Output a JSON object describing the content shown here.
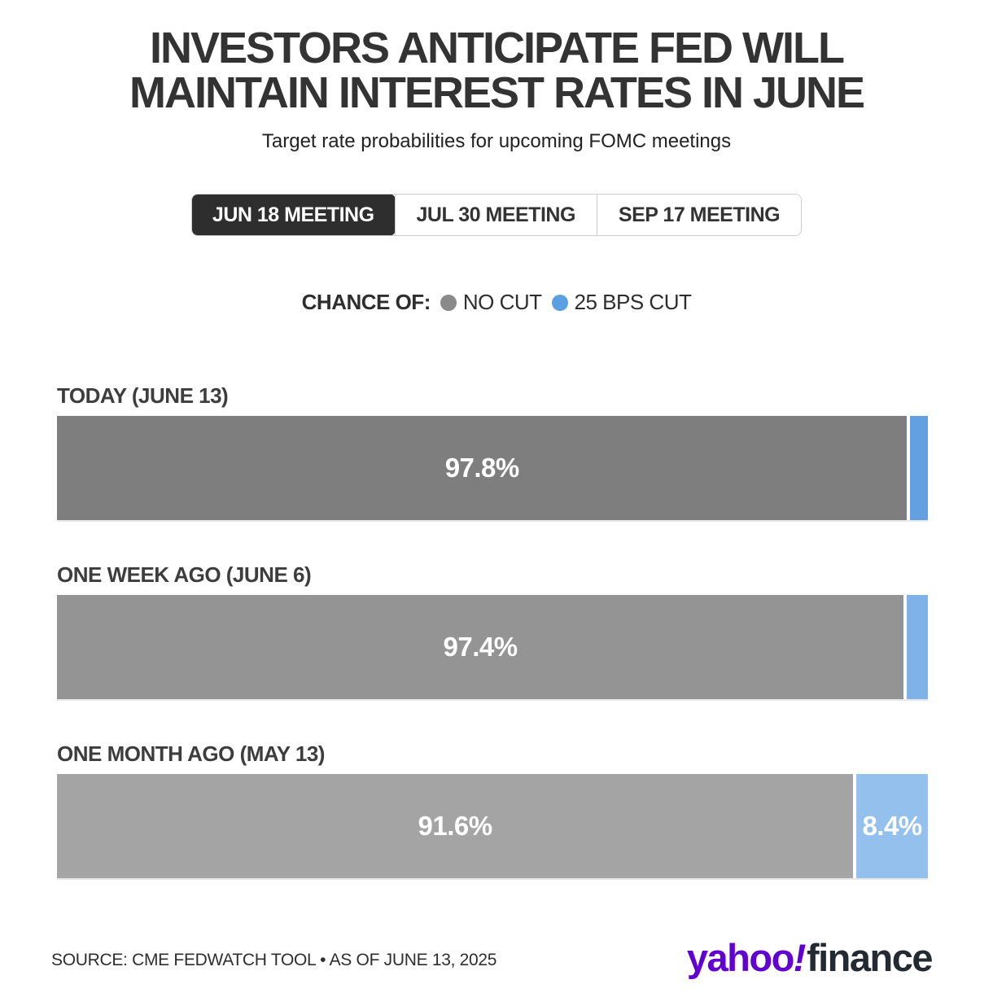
{
  "title": {
    "line1": "INVESTORS ANTICIPATE FED WILL",
    "line2": "MAINTAIN INTEREST RATES IN JUNE"
  },
  "subtitle": "Target rate probabilities for upcoming FOMC meetings",
  "tabs": [
    {
      "label": "JUN 18 MEETING",
      "active": true
    },
    {
      "label": "JUL 30 MEETING",
      "active": false
    },
    {
      "label": "SEP 17 MEETING",
      "active": false
    }
  ],
  "legend": {
    "prefix": "CHANCE OF:",
    "items": [
      {
        "label": "NO CUT",
        "color": "#8a8a8a"
      },
      {
        "label": "25 BPS CUT",
        "color": "#5b9fe3"
      }
    ]
  },
  "chart_data": {
    "type": "bar",
    "orientation": "horizontal",
    "stacked": true,
    "unit": "percent",
    "title": "INVESTORS ANTICIPATE FED WILL MAINTAIN INTEREST RATES IN JUNE",
    "subtitle": "Target rate probabilities for upcoming FOMC meetings",
    "selected_tab": "JUN 18 MEETING",
    "categories": [
      "TODAY (JUNE 13)",
      "ONE WEEK AGO (JUNE 6)",
      "ONE MONTH AGO (MAY 13)"
    ],
    "series": [
      {
        "name": "NO CUT",
        "values": [
          97.8,
          97.4,
          91.6
        ]
      },
      {
        "name": "25 BPS CUT",
        "values": [
          2.2,
          2.6,
          8.4
        ]
      }
    ],
    "xlim": [
      0,
      100
    ],
    "grid": false,
    "legend_position": "top"
  },
  "rows": [
    {
      "label": "TODAY (JUNE 13)",
      "no_cut_label": "97.8%",
      "cut_label": "",
      "gray": "#7e7e7e",
      "blue": "#63a0e2"
    },
    {
      "label": "ONE WEEK AGO (JUNE 6)",
      "no_cut_label": "97.4%",
      "cut_label": "",
      "gray": "#949494",
      "blue": "#7fb2e8"
    },
    {
      "label": "ONE MONTH AGO (MAY 13)",
      "no_cut_label": "91.6%",
      "cut_label": "8.4%",
      "gray": "#a4a4a4",
      "blue": "#93c0ec"
    }
  ],
  "footer": {
    "source": "SOURCE: CME FEDWATCH TOOL • AS OF JUNE 13, 2025",
    "logo": {
      "yahoo": "yahoo",
      "bang": "!",
      "finance": "finance"
    }
  }
}
